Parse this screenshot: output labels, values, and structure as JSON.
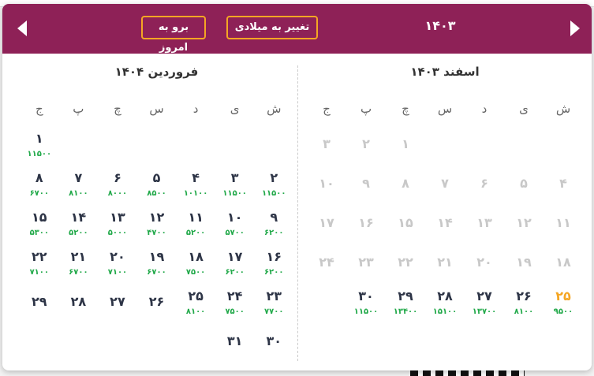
{
  "colors": {
    "header": "#8e2157",
    "accent": "#f5a623",
    "price": "#22a94a"
  },
  "header": {
    "year": "۱۴۰۳",
    "to_gregorian": "تغییر به میلادی",
    "go_today": "برو به امروز",
    "prev_icon": "triangle-left-icon",
    "next_icon": "triangle-right-icon"
  },
  "weekdays": [
    "ش",
    "ی",
    "د",
    "س",
    "چ",
    "پ",
    "ج"
  ],
  "months": [
    {
      "title": "اسفند ۱۴۰۳",
      "offset": 4,
      "days": [
        {
          "d": "۱",
          "s": "past"
        },
        {
          "d": "۲",
          "s": "past"
        },
        {
          "d": "۳",
          "s": "past"
        },
        {
          "d": "۴",
          "s": "past"
        },
        {
          "d": "۵",
          "s": "past"
        },
        {
          "d": "۶",
          "s": "past"
        },
        {
          "d": "۷",
          "s": "past"
        },
        {
          "d": "۸",
          "s": "past"
        },
        {
          "d": "۹",
          "s": "past"
        },
        {
          "d": "۱۰",
          "s": "past"
        },
        {
          "d": "۱۱",
          "s": "past"
        },
        {
          "d": "۱۲",
          "s": "past"
        },
        {
          "d": "۱۳",
          "s": "past"
        },
        {
          "d": "۱۴",
          "s": "past"
        },
        {
          "d": "۱۵",
          "s": "past"
        },
        {
          "d": "۱۶",
          "s": "past"
        },
        {
          "d": "۱۷",
          "s": "past"
        },
        {
          "d": "۱۸",
          "s": "past"
        },
        {
          "d": "۱۹",
          "s": "past"
        },
        {
          "d": "۲۰",
          "s": "past"
        },
        {
          "d": "۲۱",
          "s": "past"
        },
        {
          "d": "۲۲",
          "s": "past"
        },
        {
          "d": "۲۳",
          "s": "past"
        },
        {
          "d": "۲۴",
          "s": "past"
        },
        {
          "d": "۲۵",
          "s": "today",
          "p": "۹۵۰۰"
        },
        {
          "d": "۲۶",
          "p": "۸۱۰۰"
        },
        {
          "d": "۲۷",
          "p": "۱۳۷۰۰"
        },
        {
          "d": "۲۸",
          "p": "۱۵۱۰۰"
        },
        {
          "d": "۲۹",
          "p": "۱۳۴۰۰"
        },
        {
          "d": "۳۰",
          "p": "۱۱۵۰۰"
        }
      ]
    },
    {
      "title": "فروردین ۱۴۰۴",
      "offset": 6,
      "days": [
        {
          "d": "۱",
          "p": "۱۱۵۰۰"
        },
        {
          "d": "۲",
          "p": "۱۱۵۰۰"
        },
        {
          "d": "۳",
          "p": "۱۱۵۰۰"
        },
        {
          "d": "۴",
          "p": "۱۰۱۰۰"
        },
        {
          "d": "۵",
          "p": "۸۵۰۰"
        },
        {
          "d": "۶",
          "p": "۸۰۰۰"
        },
        {
          "d": "۷",
          "p": "۸۱۰۰"
        },
        {
          "d": "۸",
          "p": "۶۷۰۰"
        },
        {
          "d": "۹",
          "p": "۶۲۰۰"
        },
        {
          "d": "۱۰",
          "p": "۵۷۰۰"
        },
        {
          "d": "۱۱",
          "p": "۵۲۰۰"
        },
        {
          "d": "۱۲",
          "p": "۴۷۰۰"
        },
        {
          "d": "۱۳",
          "p": "۵۰۰۰"
        },
        {
          "d": "۱۴",
          "p": "۵۲۰۰"
        },
        {
          "d": "۱۵",
          "p": "۵۳۰۰"
        },
        {
          "d": "۱۶",
          "p": "۶۲۰۰"
        },
        {
          "d": "۱۷",
          "p": "۶۲۰۰"
        },
        {
          "d": "۱۸",
          "p": "۷۵۰۰"
        },
        {
          "d": "۱۹",
          "p": "۶۷۰۰"
        },
        {
          "d": "۲۰",
          "p": "۷۱۰۰"
        },
        {
          "d": "۲۱",
          "p": "۶۷۰۰"
        },
        {
          "d": "۲۲",
          "p": "۷۱۰۰"
        },
        {
          "d": "۲۳",
          "p": "۷۷۰۰"
        },
        {
          "d": "۲۴",
          "p": "۷۵۰۰"
        },
        {
          "d": "۲۵",
          "p": "۸۱۰۰"
        },
        {
          "d": "۲۶"
        },
        {
          "d": "۲۷"
        },
        {
          "d": "۲۸"
        },
        {
          "d": "۲۹"
        },
        {
          "d": "۳۰"
        },
        {
          "d": "۳۱"
        }
      ]
    }
  ]
}
